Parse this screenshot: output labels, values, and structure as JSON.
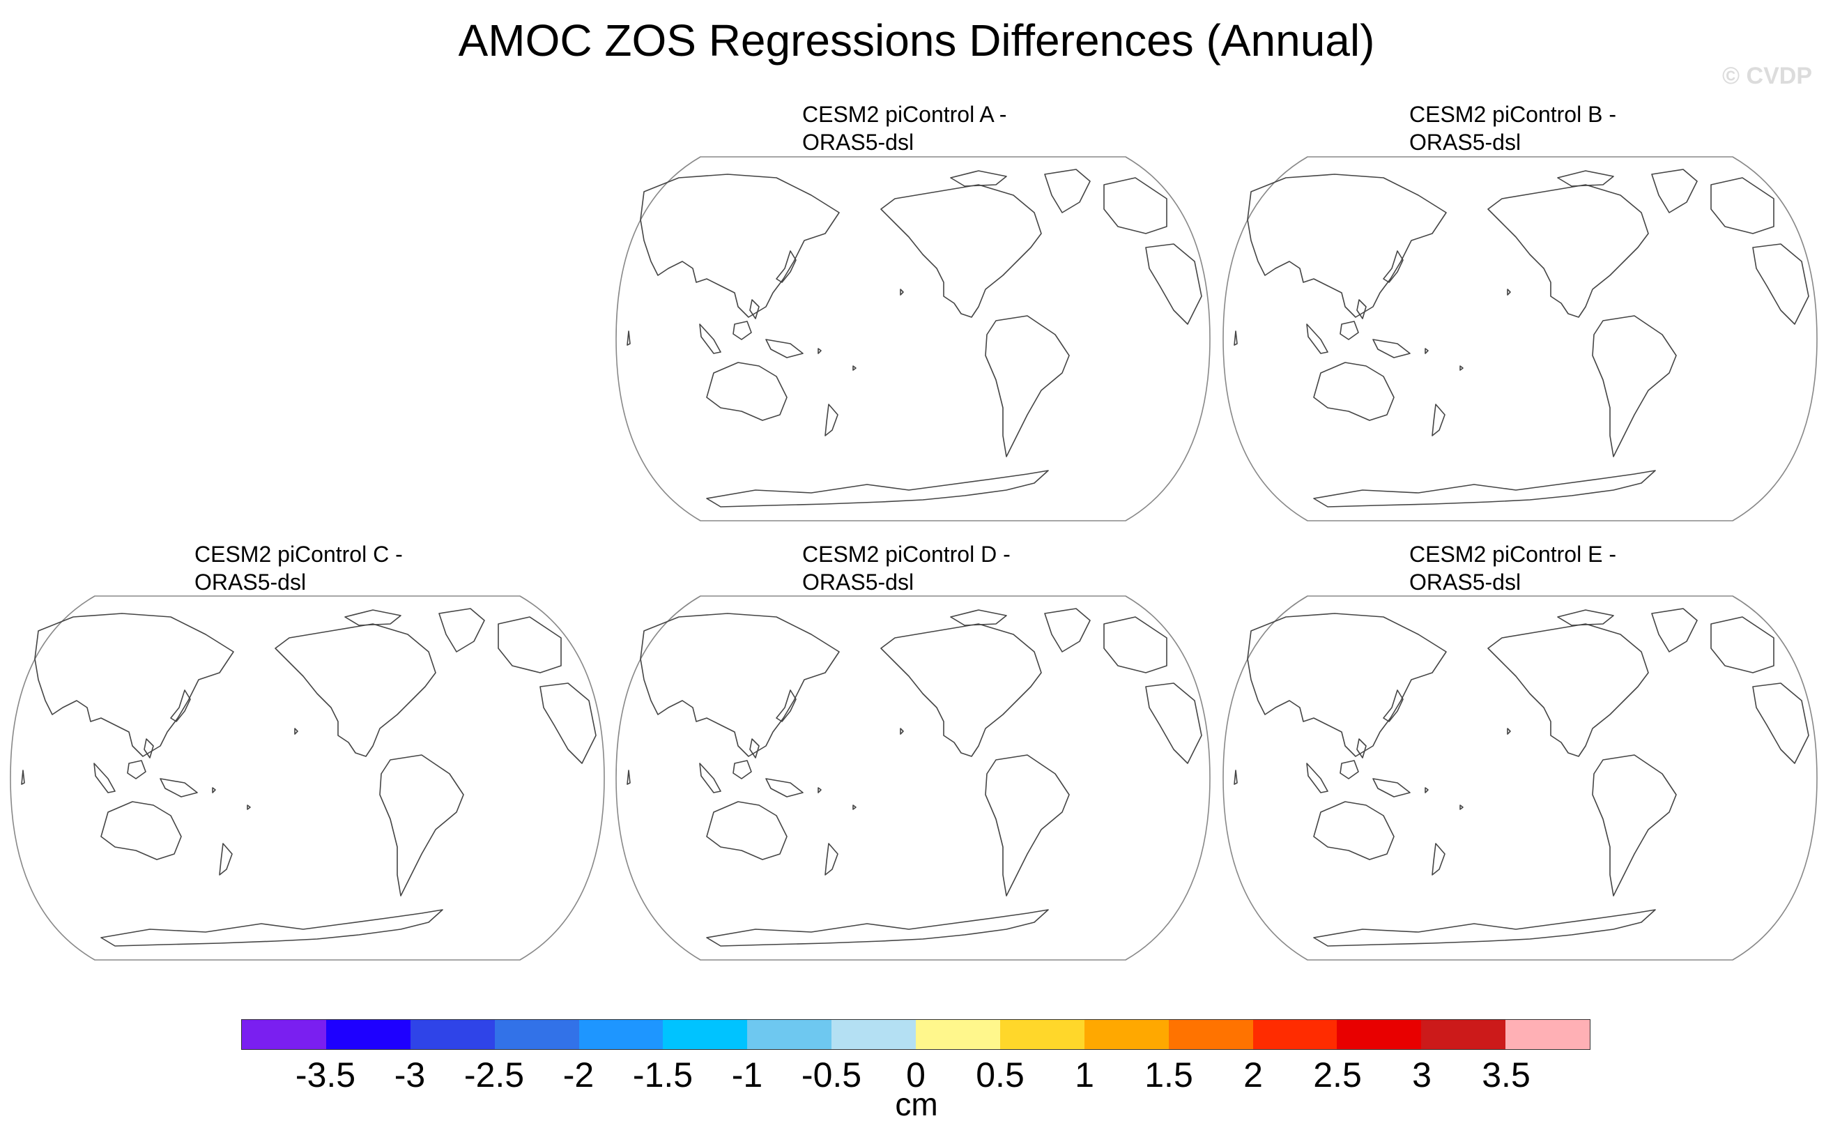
{
  "figure": {
    "title": "AMOC ZOS Regressions Differences (Annual)",
    "watermark": "© CVDP"
  },
  "panels": [
    {
      "id": "a",
      "title_line1": "CESM2 piControl A -",
      "title_line2": "ORAS5-dsl"
    },
    {
      "id": "b",
      "title_line1": "CESM2 piControl B -",
      "title_line2": "ORAS5-dsl"
    },
    {
      "id": "c",
      "title_line1": "CESM2 piControl C -",
      "title_line2": "ORAS5-dsl"
    },
    {
      "id": "d",
      "title_line1": "CESM2 piControl D -",
      "title_line2": "ORAS5-dsl"
    },
    {
      "id": "e",
      "title_line1": "CESM2 piControl E -",
      "title_line2": "ORAS5-dsl"
    }
  ],
  "colorbar": {
    "units": "cm",
    "ticks": [
      "-3.5",
      "-3",
      "-2.5",
      "-2",
      "-1.5",
      "-1",
      "-0.5",
      "0",
      "0.5",
      "1",
      "1.5",
      "2",
      "2.5",
      "3",
      "3.5"
    ],
    "colors": [
      "#7a1ff0",
      "#1e00ff",
      "#2f44e8",
      "#3272e8",
      "#1e96ff",
      "#00c3ff",
      "#6ec8f0",
      "#b4e0f3",
      "#fff78c",
      "#ffd72a",
      "#ffa800",
      "#ff7300",
      "#ff2c00",
      "#e80000",
      "#cc1a1a",
      "#ffb0b5"
    ]
  },
  "map": {
    "projection": "Robinson",
    "center": "Pacific",
    "coastline_color": "#444444",
    "boundary_color": "#888888"
  }
}
